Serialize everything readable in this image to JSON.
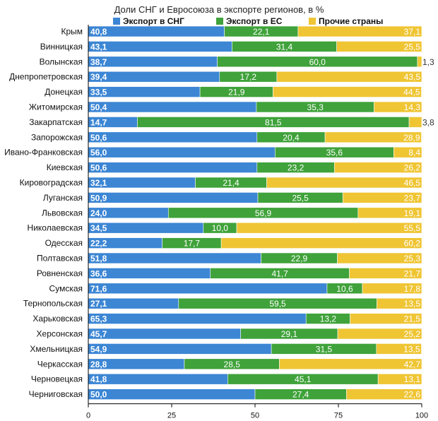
{
  "chart_data": {
    "type": "bar",
    "orientation": "horizontal",
    "stacked": true,
    "title": "Доли СНГ и Евросоюза в экспорте регионов, в %",
    "categories": [
      "Крым",
      "Винницкая",
      "Волынская",
      "Днепропетровская",
      "Донецкая",
      "Житомирская",
      "Закарпатская",
      "Запорожская",
      "Ивано-Франковская",
      "Киевская",
      "Кировоградская",
      "Луганская",
      "Львовская",
      "Николаевская",
      "Одесская",
      "Полтавская",
      "Ровненская",
      "Сумская",
      "Тернопольская",
      "Харьковская",
      "Херсонская",
      "Хмельницкая",
      "Черкасская",
      "Черновецкая",
      "Черниговская"
    ],
    "series": [
      {
        "name": "Экспорт в СНГ",
        "color": "#3c86d4",
        "values": [
          40.8,
          43.1,
          38.7,
          39.4,
          33.5,
          50.4,
          14.7,
          50.6,
          56.0,
          50.6,
          32.1,
          50.9,
          24.0,
          34.5,
          22.2,
          51.8,
          36.6,
          71.6,
          27.1,
          65.3,
          45.7,
          54.9,
          28.8,
          41.8,
          50.0
        ],
        "labels": [
          "40,8",
          "43,1",
          "38,7",
          "39,4",
          "33,5",
          "50,4",
          "14,7",
          "50,6",
          "56,0",
          "50,6",
          "32,1",
          "50,9",
          "24,0",
          "34,5",
          "22,2",
          "51,8",
          "36,6",
          "71,6",
          "27,1",
          "65,3",
          "45,7",
          "54,9",
          "28,8",
          "41,8",
          "50,0"
        ]
      },
      {
        "name": "Экспорт в ЕС",
        "color": "#3fa23a",
        "values": [
          22.1,
          31.4,
          60.0,
          17.2,
          21.9,
          35.3,
          81.5,
          20.4,
          35.6,
          23.2,
          21.4,
          25.5,
          56.9,
          10.0,
          17.7,
          22.9,
          41.7,
          10.6,
          59.5,
          13.2,
          29.1,
          31.5,
          28.5,
          45.1,
          27.4
        ],
        "labels": [
          "22,1",
          "31,4",
          "60,0",
          "17,2",
          "21,9",
          "35,3",
          "81,5",
          "20,4",
          "35,6",
          "23,2",
          "21,4",
          "25,5",
          "56,9",
          "10,0",
          "17,7",
          "22,9",
          "41,7",
          "10,6",
          "59,5",
          "13,2",
          "29,1",
          "31,5",
          "28,5",
          "45,1",
          "27,4"
        ]
      },
      {
        "name": "Прочие страны",
        "color": "#efc534",
        "values": [
          37.1,
          25.5,
          1.3,
          43.5,
          44.5,
          14.3,
          3.8,
          28.9,
          8.4,
          26.2,
          46.5,
          23.7,
          19.1,
          55.5,
          60.2,
          25.3,
          21.7,
          17.8,
          13.5,
          21.5,
          25.2,
          13.5,
          42.7,
          13.1,
          22.6
        ],
        "labels": [
          "37,1",
          "25,5",
          "1,3",
          "43,5",
          "44,5",
          "14,3",
          "3,8",
          "28,9",
          "8,4",
          "26,2",
          "46,5",
          "23,7",
          "19,1",
          "55,5",
          "60,2",
          "25,3",
          "21,7",
          "17,8",
          "13,5",
          "21,5",
          "25,2",
          "13,5",
          "42,7",
          "13,1",
          "22,6"
        ]
      }
    ],
    "xlim": [
      0,
      100
    ],
    "xticks": [
      0,
      25,
      50,
      75,
      100
    ],
    "grid": false,
    "legend": "top"
  }
}
